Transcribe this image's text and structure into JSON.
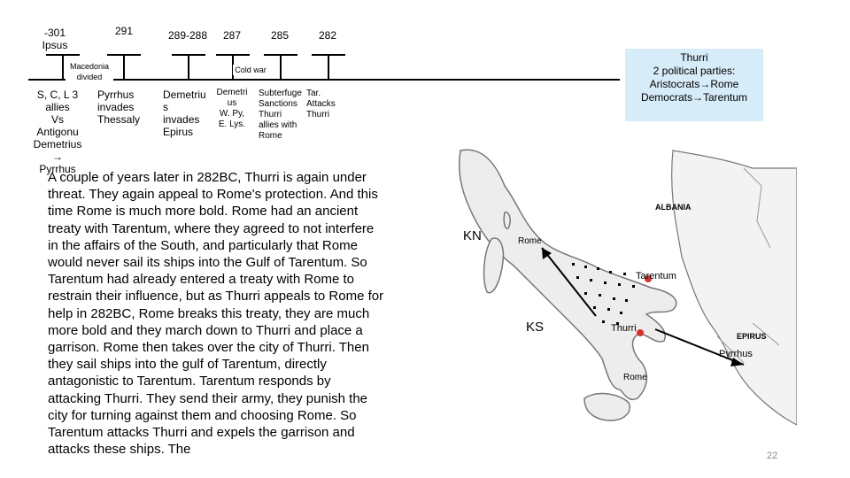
{
  "timeline": {
    "years": [
      "-301\nIpsus",
      "291",
      "289-288",
      "287",
      "285",
      "282"
    ],
    "macedonia_label": "Macedonia\ndivided",
    "coldwar_label": "Cold war",
    "events": [
      "S, C, L 3\nallies\nVs\nAntigonu\nDemetrius\n→\nPyrrhus",
      "Pyrrhus\ninvades\nThessaly",
      "Demetriu\ns\ninvades\nEpirus",
      "Demetri\nus\nW. Py,\nE. Lys.",
      "Subterfuge\nSanctions\nThurri\nallies with\nRome",
      "Tar.\nAttacks\nThurri"
    ]
  },
  "thurri_box": {
    "title": "Thurri",
    "line1": "2 political parties:",
    "line2": "Aristocrats→Rome",
    "line3": "Democrats→Tarentum"
  },
  "body_text": "A couple of years later in 282BC, Thurri is again under threat. They again appeal to Rome's protection. And this time Rome is much more bold. Rome had an ancient treaty with Tarentum, where they agreed to not interfere in the affairs of the South, and particularly that Rome would never sail its ships into the Gulf of Tarentum. So Tarentum had already entered a treaty with Rome to restrain their influence, but as Thurri appeals to Rome for help in 282BC, Rome breaks this treaty, they are much more bold and they march down to Thurri and place a garrison. Rome then takes over the city of Thurri. Then they sail ships into the gulf of Tarentum, directly antagonistic to Tarentum. Tarentum responds by attacking Thurri. They send their army, they punish the city for turning against them and choosing Rome. So Tarentum attacks Thurri and expels the garrison and attacks these ships. The",
  "map": {
    "albania": "ALBANIA",
    "kn": "KN",
    "rome_top": "Rome",
    "tarentum": "Tarentum",
    "ks": "KS",
    "thurri": "Thurri",
    "epirus": "EPIRUS",
    "pyrrhus": "Pyrrhus",
    "rome_bottom": "Rome"
  },
  "slide_number": "22"
}
